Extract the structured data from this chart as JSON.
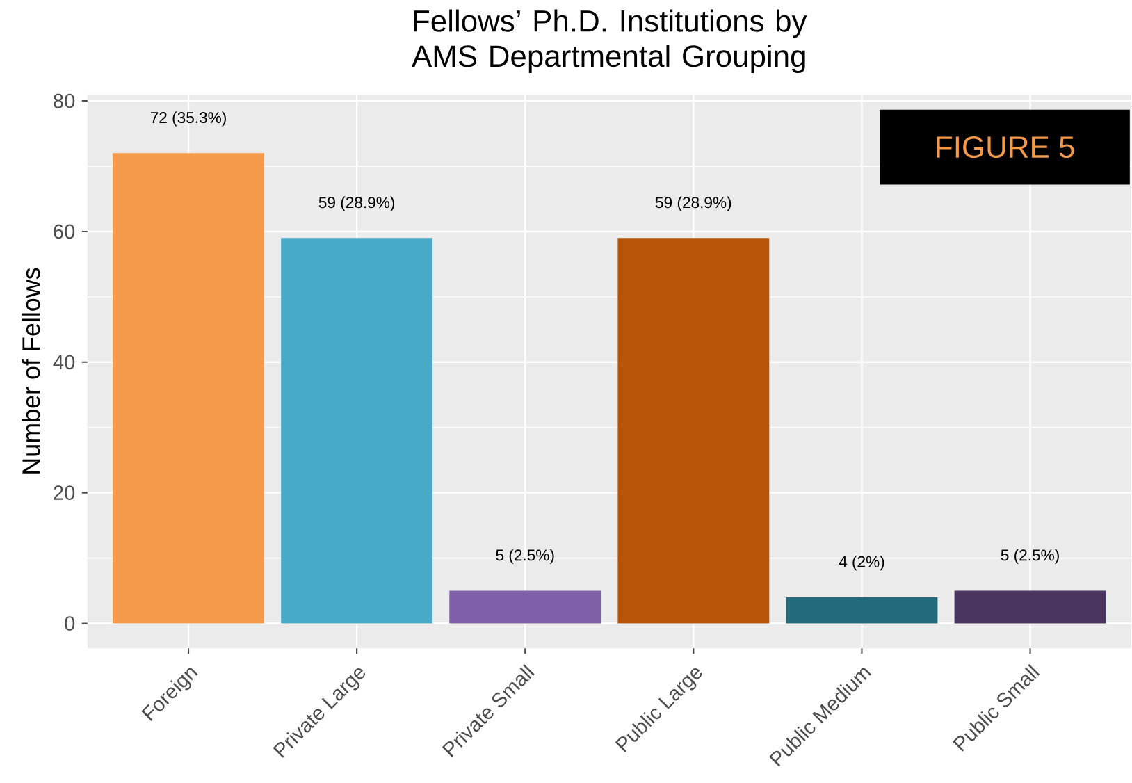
{
  "chart_data": {
    "type": "bar",
    "title": "Fellows’ Ph.D. Institutions by AMS Departmental Grouping",
    "ylabel": "Number of Fellows",
    "categories": [
      "Foreign",
      "Private Large",
      "Private Small",
      "Public Large",
      "Public Medium",
      "Public Small"
    ],
    "values": [
      72,
      59,
      5,
      59,
      4,
      5
    ],
    "colors": [
      "#f49a4a",
      "#47abc7",
      "#7f60a8",
      "#b85508",
      "#236a7c",
      "#4a3560"
    ],
    "value_labels": [
      "72 (35.3%)",
      "59 (28.9%)",
      "5 (2.5%)",
      "59 (28.9%)",
      "4 (2%)",
      "5 (2.5%)"
    ],
    "ylim": [
      -3.8,
      81
    ],
    "yticks": [
      0,
      20,
      40,
      60,
      80
    ],
    "grid": true,
    "annotations": [
      "FIGURE 5"
    ]
  }
}
